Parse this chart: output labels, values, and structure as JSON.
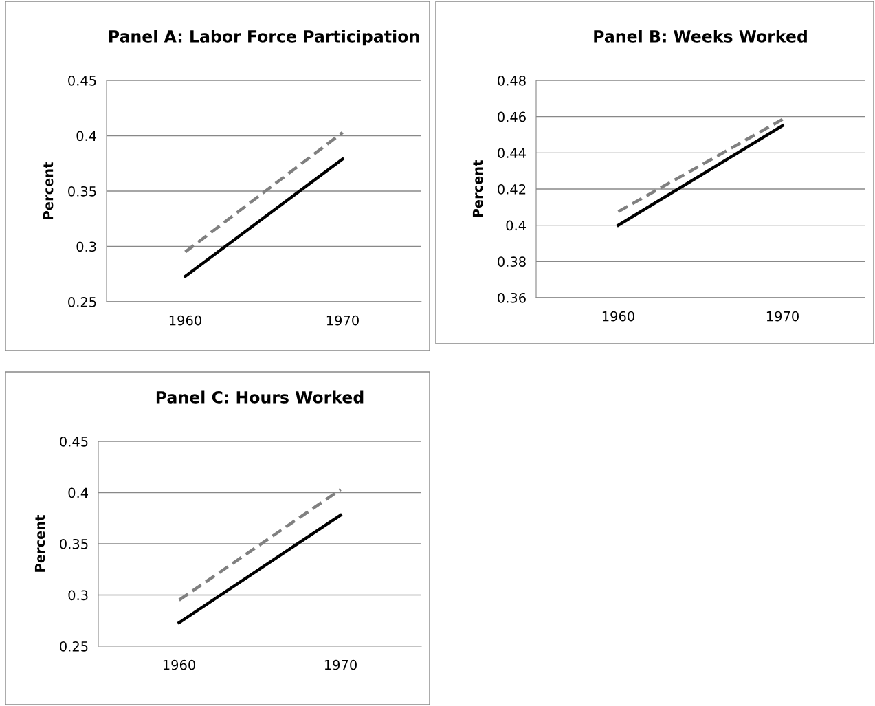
{
  "chart_data": [
    {
      "type": "line",
      "title": "Panel A: Labor Force Participation",
      "ylabel": "Percent",
      "categories": [
        "1960",
        "1970"
      ],
      "ylim": [
        0.25,
        0.45
      ],
      "yticks": [
        0.25,
        0.3,
        0.35,
        0.4,
        0.45
      ],
      "grid": "y",
      "legend": false,
      "series": [
        {
          "color": "#808080",
          "line_style": "dashed",
          "values": [
            0.295,
            0.403
          ]
        },
        {
          "color": "#000000",
          "line_style": "solid",
          "values": [
            0.273,
            0.379
          ]
        }
      ]
    },
    {
      "type": "line",
      "title": "Panel B: Weeks Worked",
      "ylabel": "Percent",
      "categories": [
        "1960",
        "1970"
      ],
      "ylim": [
        0.36,
        0.48
      ],
      "yticks": [
        0.36,
        0.38,
        0.4,
        0.42,
        0.44,
        0.46,
        0.48
      ],
      "grid": "y",
      "legend": false,
      "series": [
        {
          "color": "#808080",
          "line_style": "dashed",
          "values": [
            0.4075,
            0.4585
          ]
        },
        {
          "color": "#000000",
          "line_style": "solid",
          "values": [
            0.4,
            0.455
          ]
        }
      ]
    },
    {
      "type": "line",
      "title": "Panel C: Hours Worked",
      "ylabel": "Percent",
      "categories": [
        "1960",
        "1970"
      ],
      "ylim": [
        0.25,
        0.45
      ],
      "yticks": [
        0.25,
        0.3,
        0.35,
        0.4,
        0.45
      ],
      "grid": "y",
      "legend": false,
      "series": [
        {
          "color": "#808080",
          "line_style": "dashed",
          "values": [
            0.295,
            0.403
          ]
        },
        {
          "color": "#000000",
          "line_style": "solid",
          "values": [
            0.273,
            0.378
          ]
        }
      ]
    }
  ]
}
